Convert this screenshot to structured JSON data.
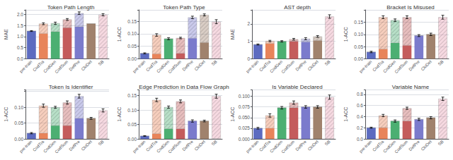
{
  "chart_data": [
    {
      "type": "bar",
      "title": "Token Path Length",
      "ylabel": "MAE",
      "categories": [
        "pre-train",
        "CodTra",
        "CodGen",
        "CodSum",
        "DefPre",
        "CloDet",
        "SB"
      ],
      "colors": [
        "#5c6bc0",
        "#e8845a",
        "#4caf72",
        "#c45c5c",
        "#7b7bcc",
        "#a0826d",
        "#e8a0b4"
      ],
      "stacked": true,
      "grid": true,
      "series": [
        {
          "values": [
            1.25,
            1.14,
            1.22,
            1.4,
            1.44,
            1.58,
            0.0
          ]
        },
        {
          "values": [
            0,
            0.44,
            0.38,
            0.37,
            0.61,
            0,
            1.98
          ],
          "errors": [
            0.02,
            0.04,
            0.05,
            0.04,
            0.06,
            0.0,
            0.05
          ]
        }
      ],
      "ylim": [
        0,
        2.2
      ],
      "yticks": [
        {
          "value": 0,
          "label": "0.0"
        },
        0.5,
        {
          "value": 1,
          "label": "1.0"
        },
        1.5,
        {
          "value": 2,
          "label": "2.0"
        }
      ]
    },
    {
      "type": "bar",
      "title": "Token Path Type",
      "ylabel": "1-ACC",
      "categories": [
        "pre-train",
        "CodTra",
        "CodGen",
        "CodSum",
        "DefPre",
        "CloDet",
        "SB"
      ],
      "colors": [
        "#5c6bc0",
        "#e8845a",
        "#4caf72",
        "#c45c5c",
        "#7b7bcc",
        "#a0826d",
        "#e8a0b4"
      ],
      "stacked": true,
      "grid": true,
      "series": [
        {
          "values": [
            0.022,
            0.02,
            0.08,
            0.022,
            0.082,
            0.065,
            0.0
          ]
        },
        {
          "values": [
            0,
            0.075,
            0,
            0.061,
            0.083,
            0.11,
            0.148
          ],
          "errors": [
            0.002,
            0.005,
            0.004,
            0.003,
            0.005,
            0.004,
            0.008
          ]
        }
      ],
      "ylim": [
        0,
        0.195
      ],
      "yticks": [
        {
          "value": 0,
          "label": "0.00"
        },
        0.05,
        {
          "value": 0.1,
          "label": "0.10"
        },
        0.15
      ]
    },
    {
      "type": "bar",
      "title": "AST depth",
      "ylabel": "MAE",
      "categories": [
        "pre-train",
        "CodTra",
        "CodGen",
        "CodSum",
        "DefPre",
        "CloDet",
        "SB"
      ],
      "colors": [
        "#5c6bc0",
        "#e8845a",
        "#4caf72",
        "#c45c5c",
        "#7b7bcc",
        "#a0826d",
        "#e8a0b4"
      ],
      "stacked": true,
      "grid": true,
      "series": [
        {
          "values": [
            0.82,
            0.88,
            1.0,
            1.0,
            0.97,
            1.05,
            0.0
          ]
        },
        {
          "values": [
            0,
            0.14,
            0,
            0.12,
            0.18,
            0.23,
            2.42
          ],
          "errors": [
            0.03,
            0.04,
            0.04,
            0.05,
            0.06,
            0.05,
            0.1
          ]
        }
      ],
      "ylim": [
        0,
        2.8
      ],
      "yticks": [
        0,
        1,
        2
      ]
    },
    {
      "type": "bar",
      "title": "Bracket Is Misused",
      "ylabel": "1-ACC",
      "categories": [
        "pre-train",
        "CodTra",
        "CodGen",
        "CodSum",
        "DefPre",
        "CloDet",
        "SB"
      ],
      "colors": [
        "#5c6bc0",
        "#e8845a",
        "#4caf72",
        "#c45c5c",
        "#7b7bcc",
        "#a0826d",
        "#e8a0b4"
      ],
      "stacked": true,
      "grid": true,
      "series": [
        {
          "values": [
            0.028,
            0.04,
            0.065,
            0.055,
            0.095,
            0.1,
            0.0
          ]
        },
        {
          "values": [
            0,
            0.13,
            0.093,
            0.115,
            0,
            0,
            0.17
          ],
          "errors": [
            0.003,
            0.006,
            0.005,
            0.006,
            0.004,
            0.005,
            0.008
          ]
        }
      ],
      "ylim": [
        0,
        0.2
      ],
      "yticks": [
        {
          "value": 0,
          "label": "0.00"
        },
        0.05,
        {
          "value": 0.1,
          "label": "0.10"
        },
        0.15
      ]
    },
    {
      "type": "bar",
      "title": "Token Is Identifier",
      "ylabel": "1-ACC",
      "categories": [
        "pre-train",
        "CodTra",
        "CodGen",
        "CodSum",
        "DefPre",
        "CloDet",
        "SB"
      ],
      "colors": [
        "#5c6bc0",
        "#e8845a",
        "#4caf72",
        "#c45c5c",
        "#7b7bcc",
        "#a0826d",
        "#e8a0b4"
      ],
      "stacked": true,
      "grid": true,
      "series": [
        {
          "values": [
            0.018,
            0.018,
            0.042,
            0.042,
            0.065,
            0.065,
            0.0
          ]
        },
        {
          "values": [
            0,
            0.087,
            0.058,
            0.073,
            0.07,
            0,
            0.09
          ],
          "errors": [
            0.002,
            0.005,
            0.003,
            0.005,
            0.006,
            0.003,
            0.005
          ]
        }
      ],
      "ylim": [
        0,
        0.155
      ],
      "yticks": [
        {
          "value": 0,
          "label": "0.00"
        },
        0.05,
        {
          "value": 0.1,
          "label": "0.10"
        }
      ]
    },
    {
      "type": "bar",
      "title": "Edge Prediction in Data Flow Graph",
      "ylabel": "1-ACC",
      "categories": [
        "pre-train",
        "CodTra",
        "CodGen",
        "CodSum",
        "DefPre",
        "CloDet",
        "SB"
      ],
      "colors": [
        "#5c6bc0",
        "#e8845a",
        "#4caf72",
        "#c45c5c",
        "#7b7bcc",
        "#a0826d",
        "#e8a0b4"
      ],
      "stacked": true,
      "grid": true,
      "series": [
        {
          "values": [
            0.01,
            0.018,
            0.035,
            0.035,
            0.062,
            0.062,
            0.0
          ]
        },
        {
          "values": [
            0,
            0.117,
            0.075,
            0.095,
            0,
            0,
            0.148
          ],
          "errors": [
            0.001,
            0.006,
            0.004,
            0.005,
            0.004,
            0.003,
            0.007
          ]
        }
      ],
      "ylim": [
        0,
        0.17
      ],
      "yticks": [
        {
          "value": 0,
          "label": "0.00"
        },
        0.05,
        {
          "value": 0.1,
          "label": "0.10"
        },
        0.15
      ]
    },
    {
      "type": "bar",
      "title": "Is Variable Declared",
      "ylabel": "1-ACC",
      "categories": [
        "pre-train",
        "CodTra",
        "CodGen",
        "CodSum",
        "DefPre",
        "CloDet",
        "SB"
      ],
      "colors": [
        "#5c6bc0",
        "#e8845a",
        "#4caf72",
        "#c45c5c",
        "#7b7bcc",
        "#a0826d",
        "#e8a0b4"
      ],
      "stacked": true,
      "grid": true,
      "series": [
        {
          "values": [
            0.025,
            0.025,
            0.073,
            0.073,
            0.075,
            0.075,
            0.0
          ]
        },
        {
          "values": [
            0,
            0.03,
            0,
            0.012,
            0,
            0,
            0.098
          ],
          "errors": [
            0.002,
            0.004,
            0.003,
            0.004,
            0.003,
            0.003,
            0.005
          ]
        }
      ],
      "ylim": [
        0,
        0.115
      ],
      "yticks": [
        {
          "value": 0,
          "label": "0.000"
        },
        0.025,
        {
          "value": 0.05,
          "label": "0.050"
        },
        0.075,
        {
          "value": 0.1,
          "label": "0.100"
        }
      ]
    },
    {
      "type": "bar",
      "title": "Variable Name",
      "ylabel": "1-ACC",
      "categories": [
        "pre-train",
        "CodTra",
        "CodGen",
        "CodSum",
        "DefPre",
        "CloDet",
        "SB"
      ],
      "colors": [
        "#5c6bc0",
        "#e8845a",
        "#4caf72",
        "#c45c5c",
        "#7b7bcc",
        "#a0826d",
        "#e8a0b4"
      ],
      "stacked": true,
      "grid": true,
      "series": [
        {
          "values": [
            0.2,
            0.2,
            0.32,
            0.32,
            0.35,
            0.38,
            0.0
          ]
        },
        {
          "values": [
            0,
            0.22,
            0,
            0.23,
            0,
            0,
            0.72
          ],
          "errors": [
            0.01,
            0.02,
            0.02,
            0.02,
            0.02,
            0.02,
            0.03
          ]
        }
      ],
      "ylim": [
        0,
        0.88
      ],
      "yticks": [
        {
          "value": 0,
          "label": "0.0"
        },
        0.2,
        0.4,
        0.6,
        0.8
      ]
    }
  ]
}
